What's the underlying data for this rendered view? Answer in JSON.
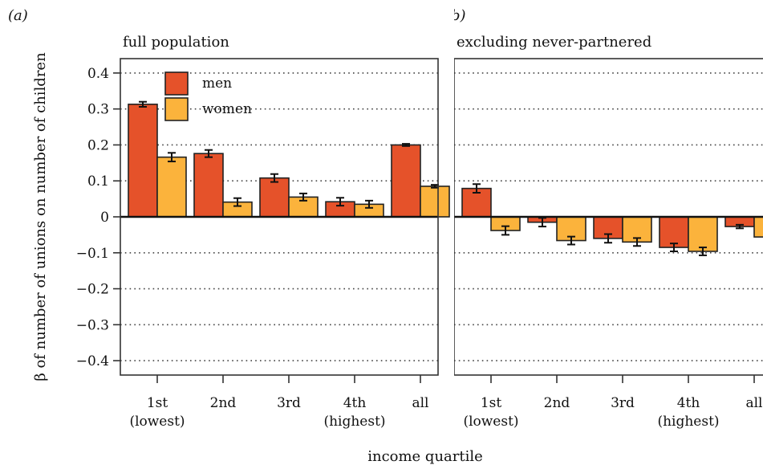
{
  "colors": {
    "men": "#e5522a",
    "women": "#fbb33c",
    "axis": "#333333",
    "grid": "#444444",
    "error": "#111111"
  },
  "chart_data": {
    "type": "bar",
    "ylabel": "β of number of unions on number of children",
    "xlabel": "income quartile",
    "ylim": [
      -0.44,
      0.44
    ],
    "yticks": [
      -0.4,
      -0.3,
      -0.2,
      -0.1,
      0,
      0.1,
      0.2,
      0.3,
      0.4
    ],
    "ytick_labels": [
      "−0.4",
      "−0.3",
      "−0.2",
      "−0.1",
      "0",
      "0.1",
      "0.2",
      "0.3",
      "0.4"
    ],
    "grid": "horizontal dotted",
    "legend": {
      "placement": "top-left",
      "entries": [
        "men",
        "women"
      ]
    },
    "categories": [
      {
        "line1": "1st",
        "line2": "(lowest)"
      },
      {
        "line1": "2nd",
        "line2": ""
      },
      {
        "line1": "3rd",
        "line2": ""
      },
      {
        "line1": "4th",
        "line2": "(highest)"
      },
      {
        "line1": "all",
        "line2": ""
      }
    ],
    "panels": [
      {
        "letter": "(a)",
        "title": "full population",
        "series": [
          {
            "name": "men",
            "values": [
              0.313,
              0.176,
              0.108,
              0.042,
              0.2
            ],
            "errors": [
              0.007,
              0.01,
              0.011,
              0.011,
              0.003
            ]
          },
          {
            "name": "women",
            "values": [
              0.166,
              0.041,
              0.055,
              0.035,
              0.085
            ],
            "errors": [
              0.012,
              0.011,
              0.01,
              0.01,
              0.004
            ]
          }
        ]
      },
      {
        "letter": "(b)",
        "title": "excluding never-partnered",
        "series": [
          {
            "name": "men",
            "values": [
              0.079,
              -0.015,
              -0.06,
              -0.085,
              -0.027
            ],
            "errors": [
              0.012,
              0.012,
              0.012,
              0.011,
              0.005
            ]
          },
          {
            "name": "women",
            "values": [
              -0.038,
              -0.066,
              -0.07,
              -0.096,
              -0.056
            ],
            "errors": [
              0.012,
              0.011,
              0.011,
              0.011,
              0.004
            ]
          }
        ]
      }
    ]
  }
}
